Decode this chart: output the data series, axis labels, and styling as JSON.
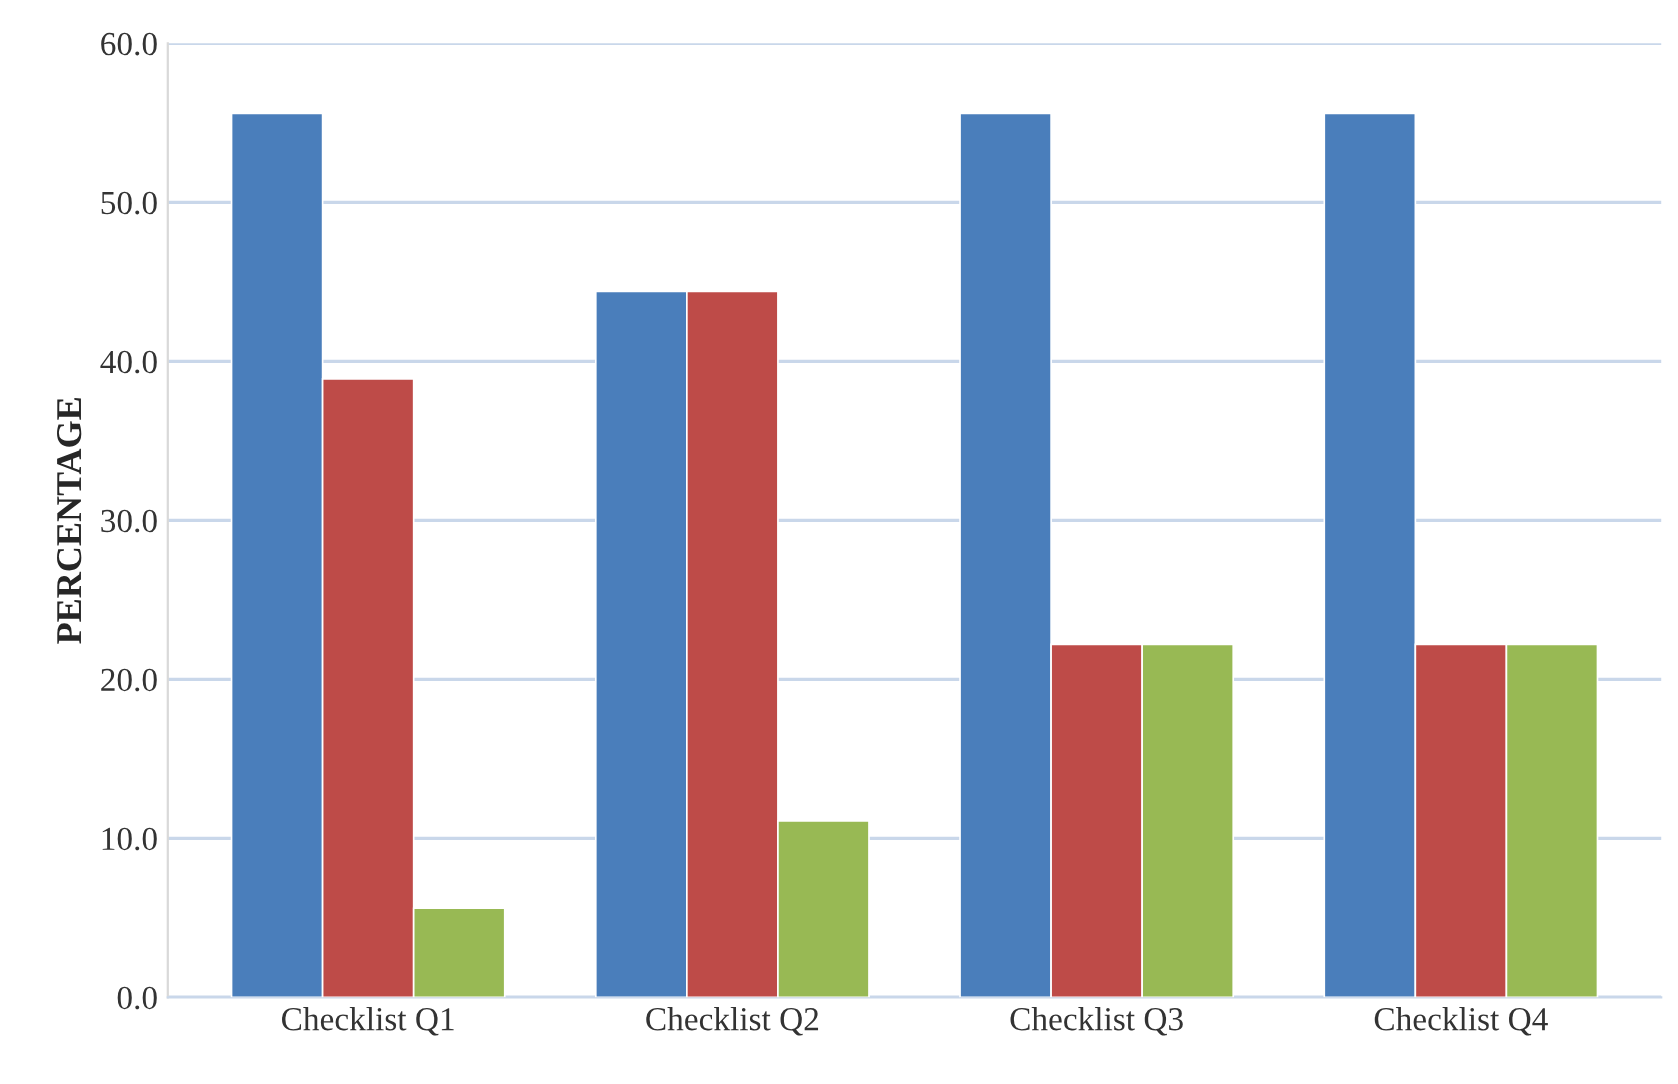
{
  "chart_data": {
    "type": "bar",
    "ylabel": "PERCENTAGE",
    "categories": [
      "Checklist Q1",
      "Checklist Q2",
      "Checklist Q3",
      "Checklist Q4"
    ],
    "series": [
      {
        "color": "#4a7ebb",
        "values": [
          55.6,
          44.4,
          55.6,
          55.6
        ]
      },
      {
        "color": "#be4b48",
        "values": [
          38.9,
          44.4,
          22.2,
          22.2
        ]
      },
      {
        "color": "#98b954",
        "values": [
          5.6,
          11.1,
          22.2,
          22.2
        ]
      }
    ],
    "ylim": [
      0,
      60
    ],
    "yticks": [
      {
        "value": 0,
        "label": "0.0"
      },
      {
        "value": 10,
        "label": "10.0"
      },
      {
        "value": 20,
        "label": "20.0"
      },
      {
        "value": 30,
        "label": "30.0"
      },
      {
        "value": 40,
        "label": "40.0"
      },
      {
        "value": 50,
        "label": "50.0"
      },
      {
        "value": 60,
        "label": "60.0"
      }
    ],
    "grid": "y"
  }
}
